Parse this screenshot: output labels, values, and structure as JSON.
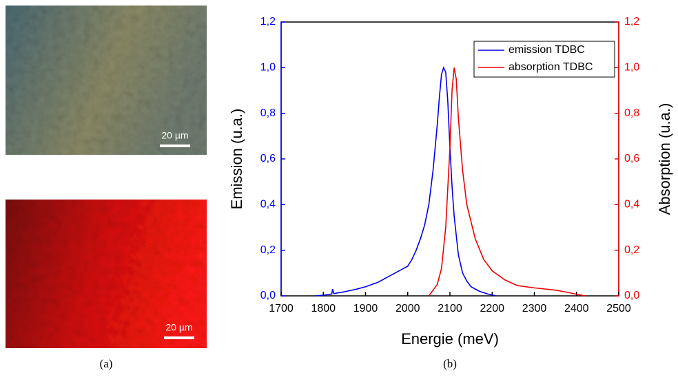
{
  "figure": {
    "image_labels": [
      "20 µm",
      "20 µm"
    ],
    "captions": [
      "(a)",
      "(b)"
    ]
  },
  "chart_data": {
    "type": "line",
    "x_label": "Energie (meV)",
    "y_label": "Emission (u.a.)",
    "y2_label": "Absorption (u.a.)",
    "xlim": [
      1700,
      2500
    ],
    "xticks": [
      1700,
      1800,
      1900,
      2000,
      2100,
      2200,
      2300,
      2400,
      2500
    ],
    "ylim": [
      0,
      1.2
    ],
    "yticks": [
      {
        "value": 0,
        "label": "0,0"
      },
      {
        "value": 0.2,
        "label": "0,2"
      },
      {
        "value": 0.4,
        "label": "0,4"
      },
      {
        "value": 0.6,
        "label": "0,6"
      },
      {
        "value": 0.8,
        "label": "0,8"
      },
      {
        "value": 1.0,
        "label": "1,0"
      },
      {
        "value": 1.2,
        "label": "1,2"
      }
    ],
    "y2lim": [
      0,
      1.2
    ],
    "y2ticks": [
      {
        "value": 0,
        "label": "0,0"
      },
      {
        "value": 0.2,
        "label": "0,2"
      },
      {
        "value": 0.4,
        "label": "0,4"
      },
      {
        "value": 0.6,
        "label": "0,6"
      },
      {
        "value": 0.8,
        "label": "0,8"
      },
      {
        "value": 1.0,
        "label": "1,0"
      },
      {
        "value": 1.2,
        "label": "1,2"
      }
    ],
    "legend": "upper right",
    "series": [
      {
        "name": "emission TDBC",
        "color": "#0000ee",
        "axis": "y",
        "x": [
          1780,
          1800,
          1820,
          1822,
          1825,
          1850,
          1880,
          1900,
          1930,
          1950,
          1970,
          1990,
          2000,
          2010,
          2020,
          2030,
          2040,
          2050,
          2060,
          2070,
          2075,
          2080,
          2085,
          2090,
          2095,
          2100,
          2105,
          2110,
          2120,
          2130,
          2140,
          2150,
          2170,
          2190,
          2210
        ],
        "values": [
          0,
          0.003,
          0.008,
          0.03,
          0.01,
          0.018,
          0.03,
          0.04,
          0.06,
          0.08,
          0.1,
          0.12,
          0.13,
          0.16,
          0.2,
          0.25,
          0.31,
          0.4,
          0.55,
          0.75,
          0.87,
          0.97,
          1.0,
          0.98,
          0.85,
          0.65,
          0.48,
          0.35,
          0.18,
          0.1,
          0.065,
          0.04,
          0.02,
          0.008,
          0
        ]
      },
      {
        "name": "absorption TDBC",
        "color": "#ee0000",
        "axis": "y2",
        "x": [
          2050,
          2070,
          2080,
          2090,
          2100,
          2105,
          2110,
          2115,
          2120,
          2130,
          2140,
          2160,
          2180,
          2200,
          2230,
          2260,
          2300,
          2350,
          2380,
          2400,
          2420
        ],
        "values": [
          0,
          0.05,
          0.12,
          0.3,
          0.65,
          0.9,
          1.0,
          0.95,
          0.78,
          0.55,
          0.4,
          0.25,
          0.16,
          0.11,
          0.07,
          0.045,
          0.035,
          0.025,
          0.015,
          0.007,
          0
        ]
      }
    ]
  }
}
